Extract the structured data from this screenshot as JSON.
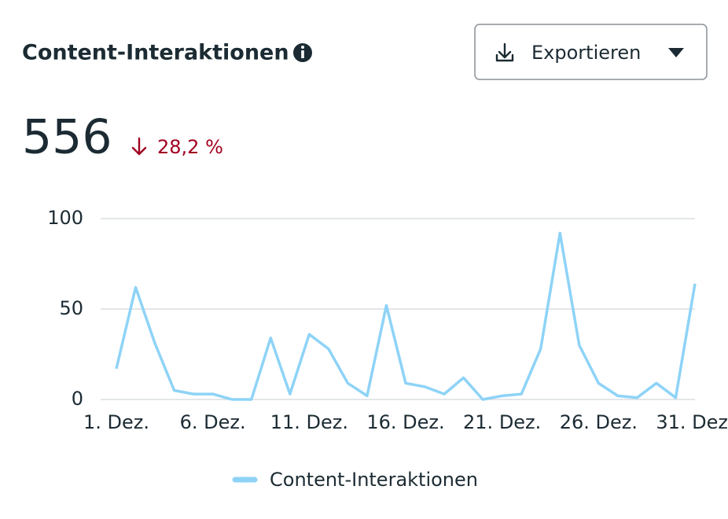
{
  "header": {
    "title": "Content-Interaktionen",
    "export_label": "Exportieren"
  },
  "summary": {
    "value": 556,
    "change": "28,2 %"
  },
  "chart_data": {
    "type": "line",
    "categories": [
      "1. Dez.",
      null,
      null,
      null,
      null,
      "6. Dez.",
      null,
      null,
      null,
      null,
      "11. Dez.",
      null,
      null,
      null,
      null,
      "16. Dez.",
      null,
      null,
      null,
      null,
      "21. Dez.",
      null,
      null,
      null,
      null,
      "26. Dez.",
      null,
      null,
      null,
      null,
      "31. Dez."
    ],
    "series": [
      {
        "name": "Content-Interaktionen",
        "color": "#8ed3f7",
        "values": [
          17,
          62,
          31,
          5,
          3,
          3,
          0,
          0,
          34,
          3,
          36,
          28,
          9,
          2,
          52,
          9,
          7,
          3,
          12,
          0,
          2,
          3,
          28,
          92,
          30,
          9,
          2,
          1,
          9,
          1,
          64
        ]
      }
    ],
    "ylim": [
      0,
      100
    ],
    "yticks": [
      0,
      50,
      100
    ],
    "grid": true
  }
}
